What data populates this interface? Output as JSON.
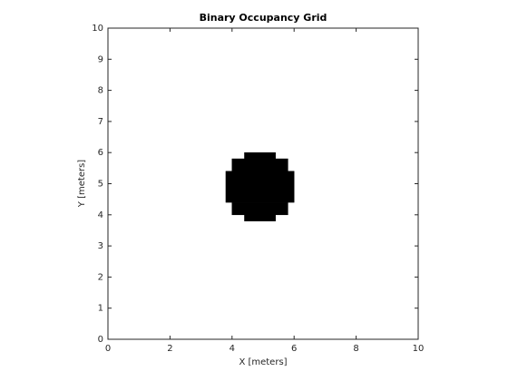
{
  "chart_data": {
    "type": "occupancy",
    "title": "Binary Occupancy Grid",
    "x_label": "X [meters]",
    "y_label": "Y [meters]",
    "xlim": [
      0,
      10
    ],
    "ylim": [
      0,
      10
    ],
    "xticks": [
      0,
      2,
      4,
      6,
      8,
      10
    ],
    "yticks": [
      0,
      1,
      2,
      3,
      4,
      5,
      6,
      7,
      8,
      9,
      10
    ],
    "color": "#000000",
    "occupied_regions": [
      {
        "x": [
          4.4,
          5.4
        ],
        "y": [
          5.8,
          6.0
        ]
      },
      {
        "x": [
          4.0,
          5.8
        ],
        "y": [
          5.4,
          5.8
        ]
      },
      {
        "x": [
          3.8,
          6.0
        ],
        "y": [
          4.4,
          5.4
        ]
      },
      {
        "x": [
          4.0,
          5.8
        ],
        "y": [
          4.0,
          4.4
        ]
      },
      {
        "x": [
          4.4,
          5.4
        ],
        "y": [
          3.8,
          4.0
        ]
      }
    ]
  }
}
